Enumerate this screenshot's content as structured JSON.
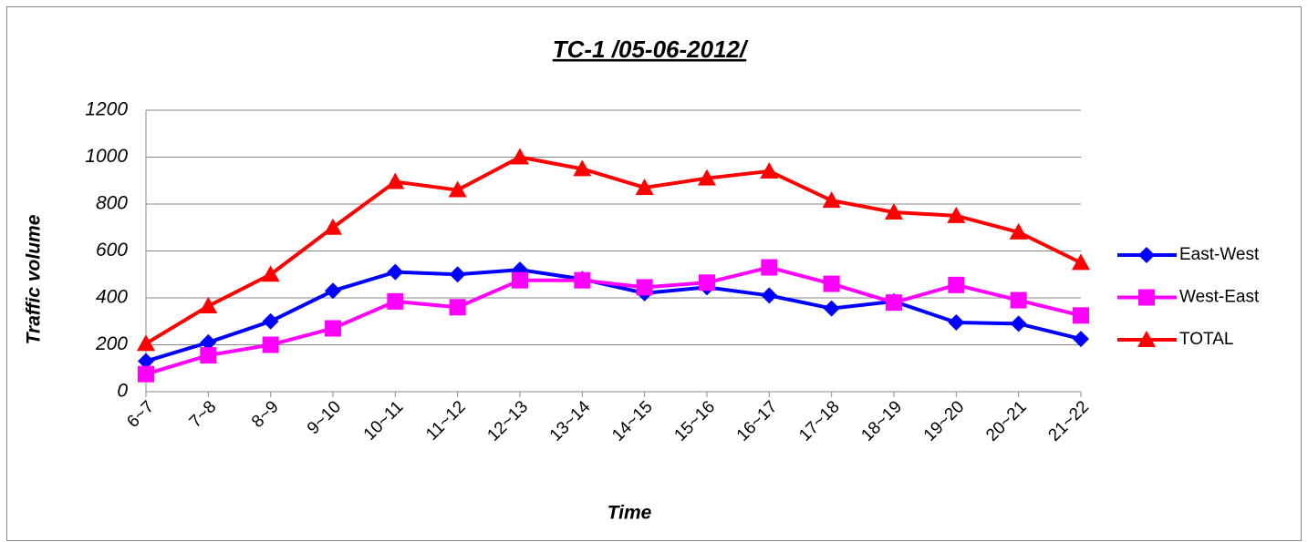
{
  "chart_data": {
    "type": "line",
    "title": "TC-1 /05-06-2012/",
    "x_label": "Time",
    "y_label": "Traffic volume",
    "categories": [
      "6~7",
      "7~8",
      "8~9",
      "9~10",
      "10~11",
      "11~12",
      "12~13",
      "13~14",
      "14~15",
      "15~16",
      "16~17",
      "17~18",
      "18~19",
      "19~20",
      "20~21",
      "21~22"
    ],
    "series": [
      {
        "name": "East-West",
        "color": "#0000ff",
        "marker": "diamond",
        "values": [
          130,
          210,
          300,
          430,
          510,
          500,
          520,
          480,
          420,
          445,
          410,
          355,
          385,
          295,
          290,
          225
        ]
      },
      {
        "name": "West-East",
        "color": "#ff00ff",
        "marker": "square",
        "values": [
          75,
          155,
          200,
          270,
          385,
          360,
          475,
          475,
          445,
          465,
          530,
          460,
          380,
          455,
          390,
          325
        ]
      },
      {
        "name": "TOTAL",
        "color": "#ff0000",
        "marker": "triangle",
        "values": [
          205,
          365,
          500,
          700,
          895,
          860,
          1000,
          950,
          870,
          910,
          940,
          815,
          765,
          750,
          680,
          550
        ]
      }
    ],
    "ylim": [
      0,
      1200
    ],
    "yticks": [
      0,
      200,
      400,
      600,
      800,
      1000,
      1200
    ],
    "grid": true,
    "legend": "right"
  }
}
